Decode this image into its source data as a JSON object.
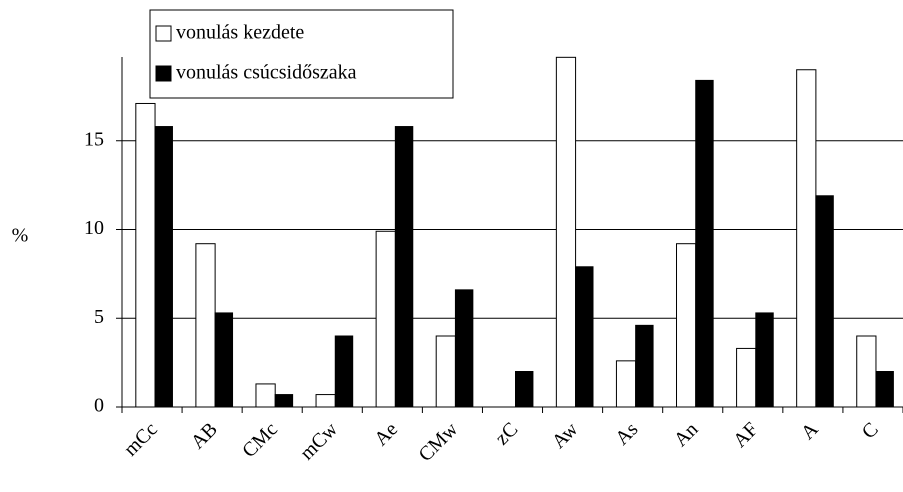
{
  "chart_data": {
    "type": "bar",
    "y_label": "%",
    "categories": [
      "mCc",
      "AB",
      "CMc",
      "mCw",
      "Ae",
      "CMw",
      "zC",
      "Aw",
      "As",
      "An",
      "AF",
      "A",
      "C"
    ],
    "series": [
      {
        "name": "vonulás kezdete",
        "color": "#ffffff",
        "values": [
          17.1,
          9.2,
          1.3,
          0.7,
          9.9,
          4.0,
          0,
          19.7,
          2.6,
          9.2,
          3.3,
          19.0,
          4.0
        ]
      },
      {
        "name": "vonulás csúcsidőszaka",
        "color": "#000000",
        "values": [
          15.8,
          5.3,
          0.7,
          4.0,
          15.8,
          6.6,
          2.0,
          7.9,
          4.6,
          18.4,
          5.3,
          11.9,
          2.0
        ]
      }
    ],
    "ylim": [
      0,
      20
    ],
    "yticks": [
      0,
      5,
      10,
      15
    ],
    "grid": true,
    "legend": "upper left"
  }
}
